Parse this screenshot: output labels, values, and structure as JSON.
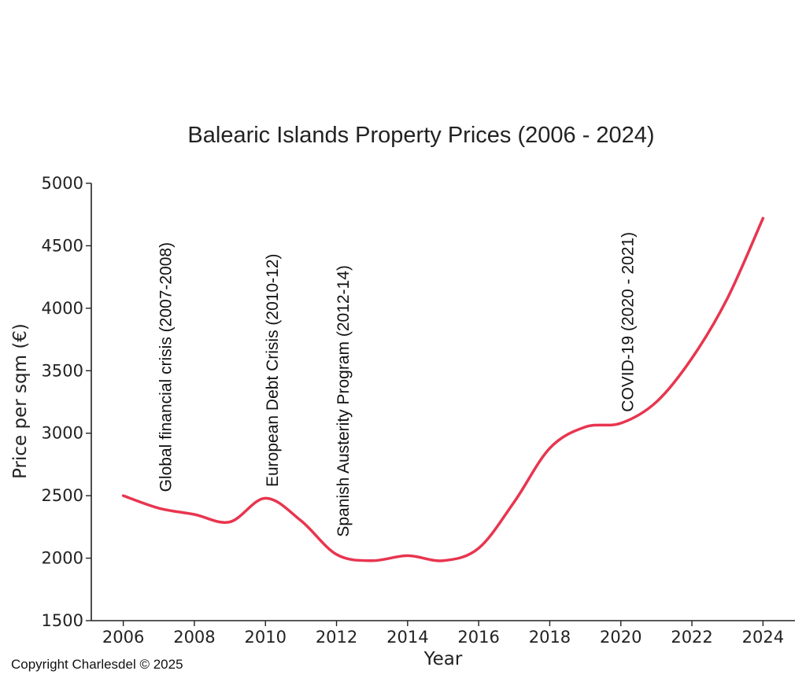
{
  "chart_data": {
    "type": "line",
    "title": "Balearic Islands Property Prices (2006 - 2024)",
    "xlabel": "Year",
    "ylabel": "Price per sqm (€)",
    "xlim": [
      2005.1,
      2024.9
    ],
    "ylim": [
      1500,
      5000
    ],
    "xticks": [
      2006,
      2008,
      2010,
      2012,
      2014,
      2016,
      2018,
      2020,
      2022,
      2024
    ],
    "yticks": [
      1500,
      2000,
      2500,
      3000,
      3500,
      4000,
      4500,
      5000
    ],
    "grid": false,
    "series": [
      {
        "color": "#e8354f",
        "x": [
          2006,
          2007,
          2008,
          2009,
          2010,
          2011,
          2012,
          2013,
          2014,
          2015,
          2016,
          2017,
          2018,
          2019,
          2020,
          2021,
          2022,
          2023,
          2024
        ],
        "y": [
          2500,
          2400,
          2350,
          2290,
          2480,
          2300,
          2030,
          1980,
          2020,
          1980,
          2080,
          2450,
          2880,
          3050,
          3080,
          3250,
          3600,
          4080,
          4720
        ]
      }
    ],
    "annotations": [
      {
        "text": "Global financial crisis (2007-2008)",
        "x": 2007.2,
        "y": 2530
      },
      {
        "text": "European Debt Crisis (2010-12)",
        "x": 2010.2,
        "y": 2570
      },
      {
        "text": "Spanish Austerity Program (2012-14)",
        "x": 2012.2,
        "y": 2170
      },
      {
        "text": "COVID-19 (2020 - 2021)",
        "x": 2020.2,
        "y": 3170
      }
    ]
  },
  "copyright": "Copyright Charlesdel © 2025"
}
